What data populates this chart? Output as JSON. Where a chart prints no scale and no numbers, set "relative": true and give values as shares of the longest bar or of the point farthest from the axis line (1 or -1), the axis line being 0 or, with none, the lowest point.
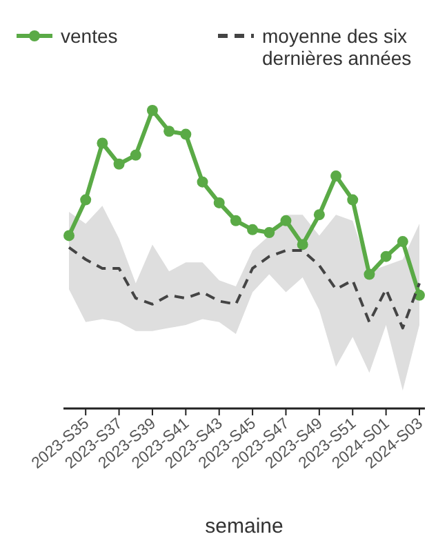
{
  "chart_data": {
    "type": "line",
    "relative": true,
    "xlabel": "semaine",
    "legend": "top",
    "categories": [
      null,
      "2023-S35",
      null,
      "2023-S37",
      null,
      "2023-S39",
      null,
      "2023-S41",
      null,
      "2023-S43",
      null,
      "2023-S45",
      null,
      "2023-S47",
      null,
      "2023-S49",
      null,
      "2023-S51",
      null,
      "2024-S01",
      null,
      "2024-S03"
    ],
    "series": [
      {
        "name": "ventes",
        "color": "#5aaa46",
        "marker": "circle",
        "line_style": "solid",
        "values": [
          0.58,
          0.7,
          0.89,
          0.82,
          0.85,
          1,
          0.93,
          0.92,
          0.76,
          0.69,
          0.63,
          0.6,
          0.59,
          0.63,
          0.55,
          0.65,
          0.78,
          0.7,
          0.45,
          0.51,
          0.56,
          0.38
        ]
      },
      {
        "name": "moyenne des six dernières années",
        "color": "#444444",
        "marker": "none",
        "line_style": "dashed",
        "values": [
          0.54,
          0.5,
          0.47,
          0.47,
          0.37,
          0.35,
          0.38,
          0.37,
          0.39,
          0.36,
          0.35,
          0.47,
          0.51,
          0.53,
          0.53,
          0.48,
          0.4,
          0.43,
          0.29,
          0.4,
          0.27,
          0.42
        ],
        "lower": [
          0.4,
          0.29,
          0.3,
          0.29,
          0.26,
          0.26,
          0.27,
          0.28,
          0.3,
          0.29,
          0.25,
          0.39,
          0.45,
          0.39,
          0.44,
          0.33,
          0.14,
          0.24,
          0.12,
          0.28,
          0.06,
          0.28
        ],
        "upper": [
          0.66,
          0.62,
          0.68,
          0.57,
          0.42,
          0.55,
          0.46,
          0.49,
          0.49,
          0.43,
          0.41,
          0.53,
          0.58,
          0.65,
          0.65,
          0.58,
          0.65,
          0.63,
          0.46,
          0.48,
          0.5,
          0.62
        ]
      }
    ]
  }
}
